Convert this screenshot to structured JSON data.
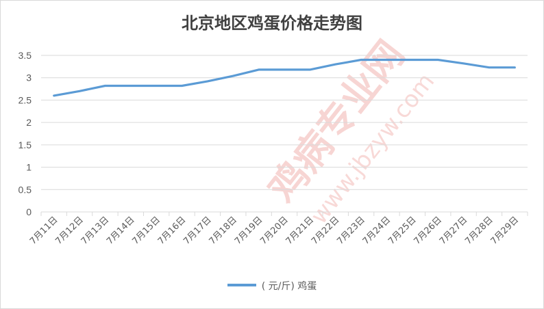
{
  "chart_data": {
    "type": "line",
    "title": "北京地区鸡蛋价格走势图",
    "categories": [
      "7月11日",
      "7月12日",
      "7月13日",
      "7月14日",
      "7月15日",
      "7月16日",
      "7月17日",
      "7月18日",
      "7月19日",
      "7月20日",
      "7月21日",
      "7月22日",
      "7月23日",
      "7月24日",
      "7月25日",
      "7月26日",
      "7月27日",
      "7月28日",
      "7月29日"
    ],
    "series": [
      {
        "name": "鸡蛋",
        "values": [
          2.6,
          2.7,
          2.82,
          2.82,
          2.82,
          2.82,
          2.92,
          3.04,
          3.18,
          3.18,
          3.18,
          3.3,
          3.4,
          3.4,
          3.4,
          3.4,
          3.32,
          3.23,
          3.23
        ],
        "color": "#5b9bd5"
      }
    ],
    "ylim": [
      0,
      3.5
    ],
    "yticks": [
      0,
      0.5,
      1,
      1.5,
      2,
      2.5,
      3,
      3.5
    ],
    "ytick_labels": [
      "0",
      "0.5",
      "1",
      "1.5",
      "2",
      "2.5",
      "3",
      "3.5"
    ],
    "grid": true,
    "legend_position": "bottom",
    "legend_label": "( 元/斤)  鸡蛋"
  },
  "watermark": {
    "main": "鸡病专业网",
    "url": "www.jbzyw.com"
  },
  "colors": {
    "line": "#5b9bd5",
    "grid": "#d9d9d9",
    "text": "#595959"
  }
}
